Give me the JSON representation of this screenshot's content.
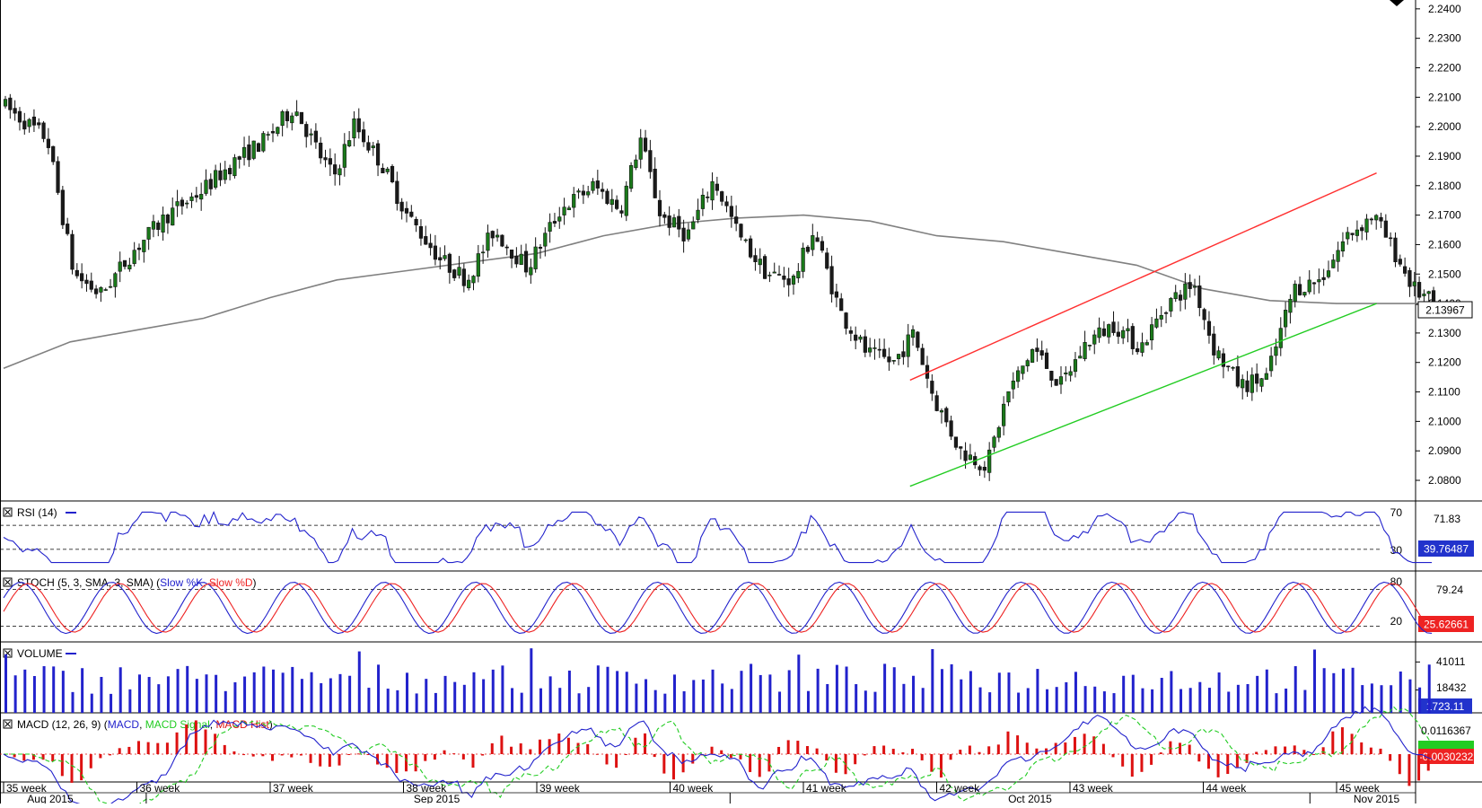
{
  "chart_data": [
    {
      "type": "candlestick",
      "panel": "price",
      "y_ticks": [
        "2.2400",
        "2.2300",
        "2.2200",
        "2.2100",
        "2.2000",
        "2.1900",
        "2.1800",
        "2.1700",
        "2.1600",
        "2.1500",
        "2.1400",
        "2.1300",
        "2.1200",
        "2.1100",
        "2.1000",
        "2.0900",
        "2.0800"
      ],
      "ylim": [
        2.073,
        2.243
      ],
      "last_price": "2.13967",
      "moving_average_color": "#808080",
      "channel": {
        "upper": {
          "color": "#ff3030",
          "from": {
            "week_index": 6.8,
            "value": 2.114
          },
          "to": {
            "week_index": 10.3,
            "value": 2.1843
          }
        },
        "lower": {
          "color": "#22cc22",
          "from": {
            "week_index": 6.8,
            "value": 2.078
          },
          "to": {
            "week_index": 10.3,
            "value": 2.14
          }
        }
      },
      "candle_colors": {
        "up": "#1a7a1a",
        "down": "#1a1a1a"
      }
    },
    {
      "type": "line",
      "panel": "rsi",
      "legend": {
        "name": "RSI (14)",
        "color": "#2222cc"
      },
      "levels": [
        "70",
        "30"
      ],
      "level_values": [
        70,
        30
      ],
      "ylim": [
        0,
        100
      ],
      "axis_value": "71.83",
      "current_value": "39.76487"
    },
    {
      "type": "line",
      "panel": "stochastic",
      "legend": {
        "prefix": "STOCH (5, 3, SMA, 3, SMA)",
        "k_name": "Slow %K",
        "d_name": "Slow %D",
        "k_color": "#2222cc",
        "d_color": "#ee2222"
      },
      "levels": [
        "80",
        "20"
      ],
      "level_values": [
        80,
        20
      ],
      "ylim": [
        0,
        100
      ],
      "axis_value": "79.24",
      "current_value": "25.62661"
    },
    {
      "type": "bar",
      "panel": "volume",
      "legend": {
        "name": "VOLUME",
        "color": "#2222cc"
      },
      "y_ticks": [
        "41011",
        "18432"
      ],
      "tick_values": [
        41011,
        18432
      ],
      "ymax": 55000,
      "current_value": "1723.11"
    },
    {
      "type": "line",
      "panel": "macd",
      "legend": {
        "prefix": "MACD (12, 26, 9)",
        "macd": "MACD",
        "signal": "MACD Signal",
        "hist": "MACD Hist",
        "macd_color": "#2222cc",
        "signal_color": "#22cc22",
        "hist_color": "#dd1111"
      },
      "y_ticks": [
        "0.0116367"
      ],
      "current_value": "-0.0030232"
    }
  ],
  "x_axis": {
    "weeks": [
      "35 week",
      "36 week",
      "37 week",
      "38 week",
      "39 week",
      "40 week",
      "41 week",
      "42 week",
      "43 week",
      "44 week",
      "45 week"
    ],
    "months": [
      "Aug 2015",
      "Sep 2015",
      "Oct 2015",
      "Nov 2015"
    ]
  }
}
